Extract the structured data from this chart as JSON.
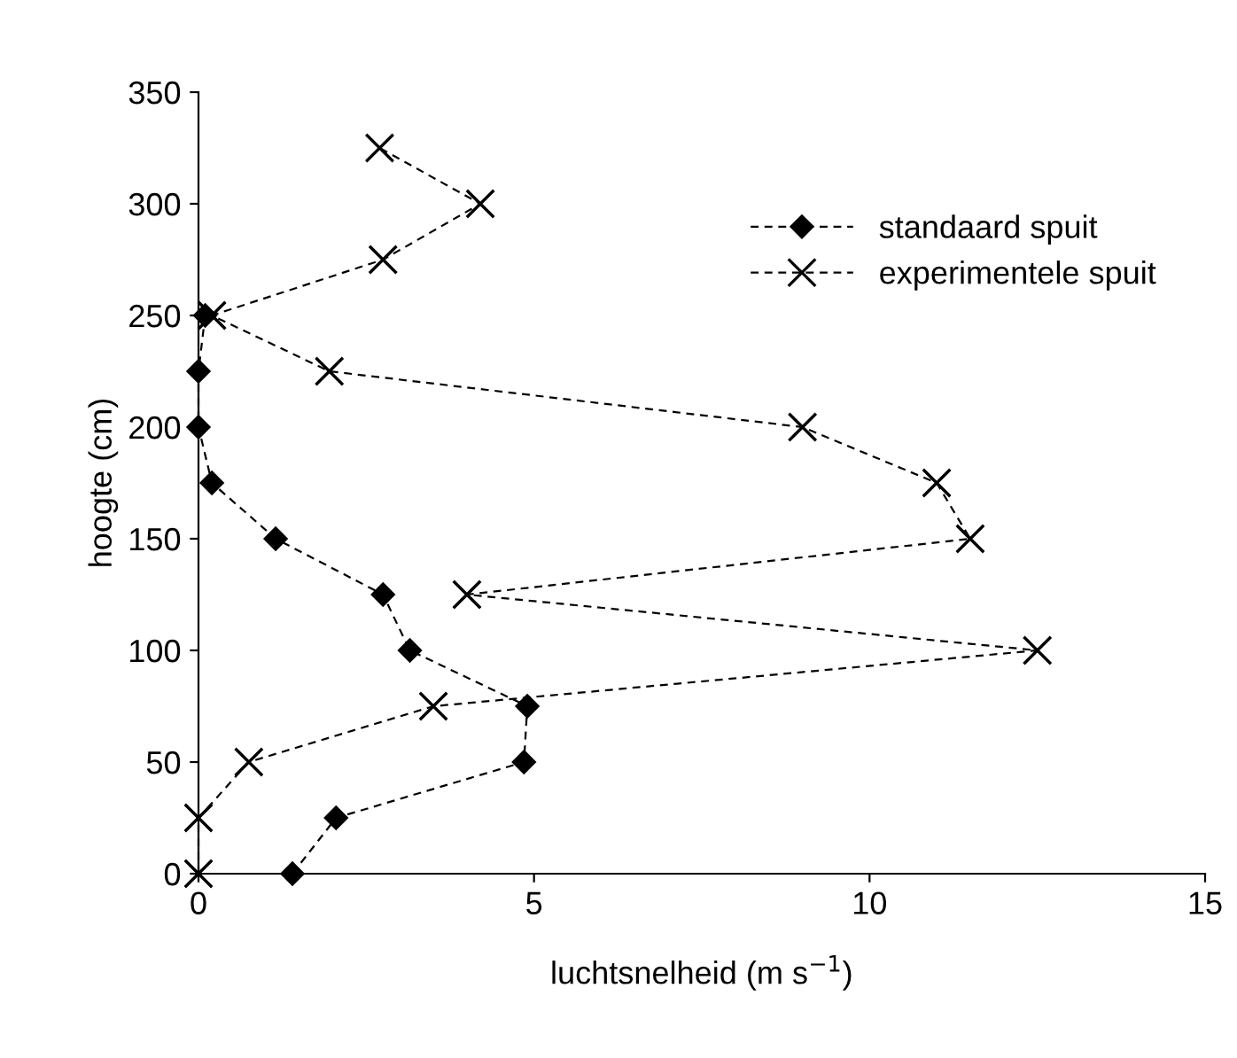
{
  "chart_data": {
    "type": "line",
    "xlabel": "luchtsnelheid (m s$^{−1}$)",
    "ylabel": "hoogte (cm)",
    "xlim": [
      0,
      15
    ],
    "xticks": [
      0,
      5,
      10,
      15
    ],
    "ylim": [
      0,
      350
    ],
    "yticks": [
      0,
      50,
      100,
      150,
      200,
      250,
      300,
      350
    ],
    "grid": false,
    "legend": "top right",
    "series": [
      {
        "name": "standaard spuit",
        "color": "#000000",
        "marker": "diamond",
        "line_style": "dashed",
        "x": [
          1.4,
          2.05,
          4.85,
          4.9,
          3.15,
          2.75,
          1.15,
          0.2,
          0,
          0,
          0.1
        ],
        "values": [
          0,
          25,
          50,
          75,
          100,
          125,
          150,
          175,
          200,
          225,
          250
        ]
      },
      {
        "name": "experimentele spuit",
        "color": "#000000",
        "marker": "cross",
        "line_style": "dashed",
        "x": [
          0,
          0,
          0.75,
          3.5,
          12.5,
          4.0,
          11.5,
          11.0,
          9.0,
          1.95,
          0.2,
          2.75,
          4.2,
          2.7
        ],
        "values": [
          0,
          25,
          50,
          75,
          100,
          125,
          150,
          175,
          200,
          225,
          250,
          275,
          300,
          325
        ]
      }
    ]
  }
}
